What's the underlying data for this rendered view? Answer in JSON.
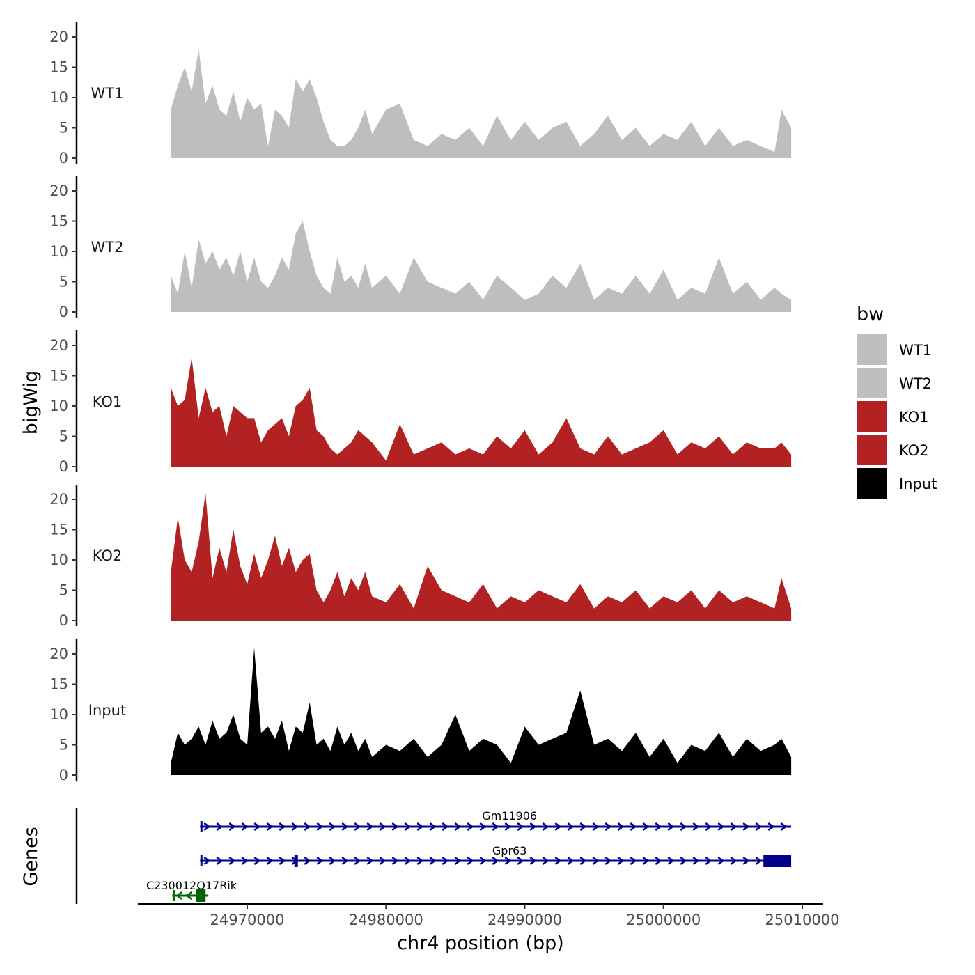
{
  "chart_data": {
    "type": "area",
    "title": "",
    "ylabel": "bigWig",
    "genes_label": "Genes",
    "xlabel": "chr4 position (bp)",
    "xlim": [
      24962500,
      25012500
    ],
    "data_range": [
      24964500,
      25009200
    ],
    "ylim": [
      0,
      22
    ],
    "yticks": [
      0,
      5,
      10,
      15,
      20
    ],
    "xticks": [
      24970000,
      24980000,
      24990000,
      25000000,
      25010000
    ],
    "xtick_labels": [
      "24970000",
      "24980000",
      "24990000",
      "25000000",
      "25010000"
    ],
    "legend": {
      "title": "bw",
      "position": "right",
      "entries": [
        {
          "label": "WT1",
          "color": "#bebebe"
        },
        {
          "label": "WT2",
          "color": "#bebebe"
        },
        {
          "label": "KO1",
          "color": "#b22222"
        },
        {
          "label": "KO2",
          "color": "#b22222"
        },
        {
          "label": "Input",
          "color": "#000000"
        }
      ]
    },
    "series": [
      {
        "name": "WT1",
        "color": "#bebebe",
        "x": [
          24964500,
          24965000,
          24965500,
          24966000,
          24966500,
          24967000,
          24967500,
          24968000,
          24968500,
          24969000,
          24969500,
          24970000,
          24970500,
          24971000,
          24971500,
          24972000,
          24972500,
          24973000,
          24973500,
          24974000,
          24974500,
          24975000,
          24975500,
          24976000,
          24976500,
          24977000,
          24977500,
          24978000,
          24978500,
          24979000,
          24980000,
          24981000,
          24982000,
          24983000,
          24984000,
          24985000,
          24986000,
          24987000,
          24988000,
          24989000,
          24990000,
          24991000,
          24992000,
          24993000,
          24994000,
          24995000,
          24996000,
          24997000,
          24998000,
          24999000,
          25000000,
          25001000,
          25002000,
          25003000,
          25004000,
          25005000,
          25006000,
          25007000,
          25008000,
          25008500,
          25009200
        ],
        "values": [
          8,
          12,
          15,
          11,
          18,
          9,
          12,
          8,
          7,
          11,
          6,
          10,
          8,
          9,
          2,
          8,
          7,
          5,
          13,
          11,
          13,
          10,
          6,
          3,
          2,
          2,
          3,
          5,
          8,
          4,
          8,
          9,
          3,
          2,
          4,
          3,
          5,
          2,
          7,
          3,
          6,
          3,
          5,
          6,
          2,
          4,
          7,
          3,
          5,
          2,
          4,
          3,
          6,
          2,
          5,
          2,
          3,
          2,
          1,
          8,
          5
        ]
      },
      {
        "name": "WT2",
        "color": "#bebebe",
        "x": [
          24964500,
          24965000,
          24965500,
          24966000,
          24966500,
          24967000,
          24967500,
          24968000,
          24968500,
          24969000,
          24969500,
          24970000,
          24970500,
          24971000,
          24971500,
          24972000,
          24972500,
          24973000,
          24973500,
          24974000,
          24974500,
          24975000,
          24975500,
          24976000,
          24976500,
          24977000,
          24977500,
          24978000,
          24978500,
          24979000,
          24980000,
          24981000,
          24982000,
          24983000,
          24984000,
          24985000,
          24986000,
          24987000,
          24988000,
          24989000,
          24990000,
          24991000,
          24992000,
          24993000,
          24994000,
          24995000,
          24996000,
          24997000,
          24998000,
          24999000,
          25000000,
          25001000,
          25002000,
          25003000,
          25004000,
          25005000,
          25006000,
          25007000,
          25008000,
          25008500,
          25009200
        ],
        "values": [
          6,
          3,
          10,
          4,
          12,
          8,
          10,
          7,
          9,
          6,
          10,
          5,
          9,
          5,
          4,
          6,
          9,
          7,
          13,
          15,
          10,
          6,
          4,
          3,
          9,
          5,
          6,
          4,
          8,
          4,
          6,
          3,
          9,
          5,
          4,
          3,
          5,
          2,
          6,
          4,
          2,
          3,
          6,
          4,
          8,
          2,
          4,
          3,
          6,
          3,
          7,
          2,
          4,
          3,
          9,
          3,
          5,
          2,
          4,
          3,
          2
        ]
      },
      {
        "name": "KO1",
        "color": "#b22222",
        "x": [
          24964500,
          24965000,
          24965500,
          24966000,
          24966500,
          24967000,
          24967500,
          24968000,
          24968500,
          24969000,
          24969500,
          24970000,
          24970500,
          24971000,
          24971500,
          24972000,
          24972500,
          24973000,
          24973500,
          24974000,
          24974500,
          24975000,
          24975500,
          24976000,
          24976500,
          24977000,
          24977500,
          24978000,
          24978500,
          24979000,
          24980000,
          24981000,
          24982000,
          24983000,
          24984000,
          24985000,
          24986000,
          24987000,
          24988000,
          24989000,
          24990000,
          24991000,
          24992000,
          24993000,
          24994000,
          24995000,
          24996000,
          24997000,
          24998000,
          24999000,
          25000000,
          25001000,
          25002000,
          25003000,
          25004000,
          25005000,
          25006000,
          25007000,
          25008000,
          25008500,
          25009200
        ],
        "values": [
          13,
          10,
          11,
          18,
          8,
          13,
          9,
          10,
          5,
          10,
          9,
          8,
          8,
          4,
          6,
          7,
          8,
          5,
          10,
          11,
          13,
          6,
          5,
          3,
          2,
          3,
          4,
          6,
          5,
          4,
          1,
          7,
          2,
          3,
          4,
          2,
          3,
          2,
          5,
          3,
          6,
          2,
          4,
          8,
          3,
          2,
          5,
          2,
          3,
          4,
          6,
          2,
          4,
          3,
          5,
          2,
          4,
          3,
          3,
          4,
          2
        ]
      },
      {
        "name": "KO2",
        "color": "#b22222",
        "x": [
          24964500,
          24965000,
          24965500,
          24966000,
          24966500,
          24967000,
          24967500,
          24968000,
          24968500,
          24969000,
          24969500,
          24970000,
          24970500,
          24971000,
          24971500,
          24972000,
          24972500,
          24973000,
          24973500,
          24974000,
          24974500,
          24975000,
          24975500,
          24976000,
          24976500,
          24977000,
          24977500,
          24978000,
          24978500,
          24979000,
          24980000,
          24981000,
          24982000,
          24983000,
          24984000,
          24985000,
          24986000,
          24987000,
          24988000,
          24989000,
          24990000,
          24991000,
          24992000,
          24993000,
          24994000,
          24995000,
          24996000,
          24997000,
          24998000,
          24999000,
          25000000,
          25001000,
          25002000,
          25003000,
          25004000,
          25005000,
          25006000,
          25007000,
          25008000,
          25008500,
          25009200
        ],
        "values": [
          8,
          17,
          10,
          8,
          13,
          21,
          7,
          12,
          8,
          15,
          9,
          6,
          11,
          7,
          10,
          14,
          9,
          12,
          8,
          10,
          11,
          5,
          3,
          5,
          8,
          4,
          7,
          5,
          8,
          4,
          3,
          6,
          2,
          9,
          5,
          4,
          3,
          6,
          2,
          4,
          3,
          5,
          4,
          3,
          6,
          2,
          4,
          3,
          5,
          2,
          4,
          3,
          5,
          2,
          5,
          3,
          4,
          3,
          2,
          7,
          2
        ]
      },
      {
        "name": "Input",
        "color": "#000000",
        "x": [
          24964500,
          24965000,
          24965500,
          24966000,
          24966500,
          24967000,
          24967500,
          24968000,
          24968500,
          24969000,
          24969500,
          24970000,
          24970500,
          24971000,
          24971500,
          24972000,
          24972500,
          24973000,
          24973500,
          24974000,
          24974500,
          24975000,
          24975500,
          24976000,
          24976500,
          24977000,
          24977500,
          24978000,
          24978500,
          24979000,
          24980000,
          24981000,
          24982000,
          24983000,
          24984000,
          24985000,
          24986000,
          24987000,
          24988000,
          24989000,
          24990000,
          24991000,
          24992000,
          24993000,
          24994000,
          24995000,
          24996000,
          24997000,
          24998000,
          24999000,
          25000000,
          25001000,
          25002000,
          25003000,
          25004000,
          25005000,
          25006000,
          25007000,
          25008000,
          25008500,
          25009200
        ],
        "values": [
          2,
          7,
          5,
          6,
          8,
          5,
          9,
          6,
          7,
          10,
          6,
          5,
          21,
          7,
          8,
          6,
          9,
          4,
          8,
          7,
          12,
          5,
          6,
          4,
          8,
          5,
          7,
          4,
          6,
          3,
          5,
          4,
          6,
          3,
          5,
          10,
          4,
          6,
          5,
          2,
          8,
          5,
          6,
          7,
          14,
          5,
          6,
          4,
          7,
          3,
          6,
          2,
          5,
          4,
          7,
          3,
          6,
          4,
          5,
          6,
          3
        ]
      }
    ],
    "genes": [
      {
        "name": "Gm11906",
        "start": 24966600,
        "end": 25009200,
        "strand": "+",
        "color": "#00008b",
        "exons": []
      },
      {
        "name": "Gpr63",
        "start": 24966600,
        "end": 25009200,
        "strand": "+",
        "color": "#00008b",
        "exons": [
          [
            25007200,
            25009200
          ]
        ]
      },
      {
        "name": "C230012O17Rik",
        "start": 24964600,
        "end": 24967200,
        "strand": "-",
        "color": "#006400",
        "exons": [
          [
            24966300,
            24967000
          ]
        ]
      }
    ]
  }
}
